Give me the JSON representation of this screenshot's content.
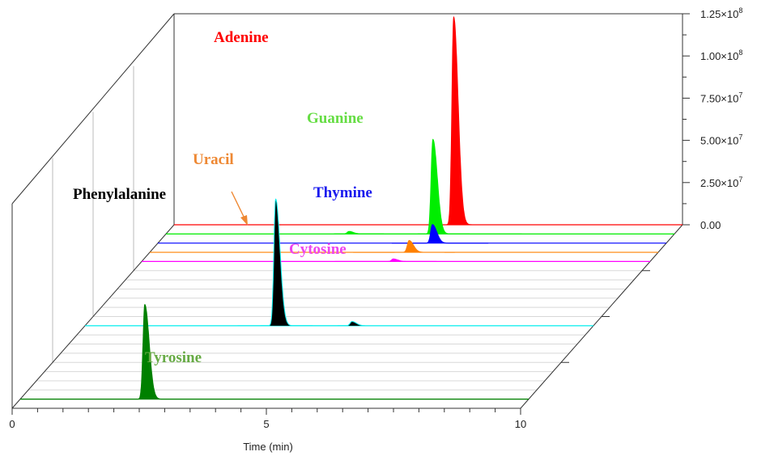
{
  "chart_data": {
    "type": "line",
    "style": "3d-waterfall-chromatogram",
    "xlabel": "Time (min)",
    "xlim": [
      0,
      10
    ],
    "x_ticks": [
      0,
      5,
      10
    ],
    "x_tick_labels": [
      "0",
      "5",
      "10"
    ],
    "ylim": [
      0,
      125000000
    ],
    "y_ticks": [
      0,
      25000000,
      50000000,
      75000000,
      100000000,
      125000000
    ],
    "y_tick_labels": [
      {
        "mant": "0.00",
        "exp": ""
      },
      {
        "mant": "2.50×10",
        "exp": "7"
      },
      {
        "mant": "5.00×10",
        "exp": "7"
      },
      {
        "mant": "7.50×10",
        "exp": "7"
      },
      {
        "mant": "1.00×10",
        "exp": "8"
      },
      {
        "mant": "1.25×10",
        "exp": "8"
      }
    ],
    "series": [
      {
        "name": "Adenine",
        "color": "#ff0000",
        "depth": 0,
        "t_range": [
          3.3,
          7.0
        ],
        "peaks": [
          {
            "rt": 5.5,
            "height": 123000000
          }
        ]
      },
      {
        "name": "Guanine",
        "color": "#00ee00",
        "depth": 1,
        "t_range": [
          3.3,
          7.0
        ],
        "peaks": [
          {
            "rt": 5.25,
            "height": 56000000
          },
          {
            "rt": 3.6,
            "height": 1500000
          }
        ]
      },
      {
        "name": "Thymine",
        "color": "#0000ff",
        "depth": 2,
        "t_range": [
          4.6,
          6.5
        ],
        "peaks": [
          {
            "rt": 5.4,
            "height": 11000000
          }
        ]
      },
      {
        "name": "Uracil",
        "color": "#ff8000",
        "depth": 3,
        "t_range": [
          4.0,
          6.0
        ],
        "peaks": [
          {
            "rt": 5.1,
            "height": 7000000
          }
        ]
      },
      {
        "name": "Cytosine",
        "color": "#ff00ff",
        "depth": 4,
        "t_range": [
          3.8,
          5.8
        ],
        "peaks": [
          {
            "rt": 4.95,
            "height": 1500000
          }
        ]
      },
      {
        "name": "Phenylalanine",
        "color": "#00eeee",
        "fill": "#000000",
        "depth": 11,
        "t_range": [
          3.0,
          5.5
        ],
        "peaks": [
          {
            "rt": 3.75,
            "height": 75000000
          },
          {
            "rt": 5.25,
            "height": 2500000
          }
        ]
      },
      {
        "name": "Tyrosine",
        "color": "#008000",
        "depth": 19,
        "t_range": [
          0.0,
          10.0
        ],
        "peaks": [
          {
            "rt": 2.45,
            "height": 56000000
          }
        ]
      }
    ],
    "labels": {
      "adenine": "Adenine",
      "guanine": "Guanine",
      "thymine": "Thymine",
      "uracil": "Uracil",
      "cytosine": "Cytosine",
      "phenylalanine": "Phenylalanine",
      "tyrosine": "Tyrosine"
    },
    "label_colors": {
      "adenine": "#ff0000",
      "guanine": "#66dd44",
      "thymine": "#1a1aee",
      "uracil": "#ee8833",
      "cytosine": "#ee44ee",
      "phenylalanine": "#000000",
      "tyrosine": "#66aa44"
    },
    "grid": true
  }
}
